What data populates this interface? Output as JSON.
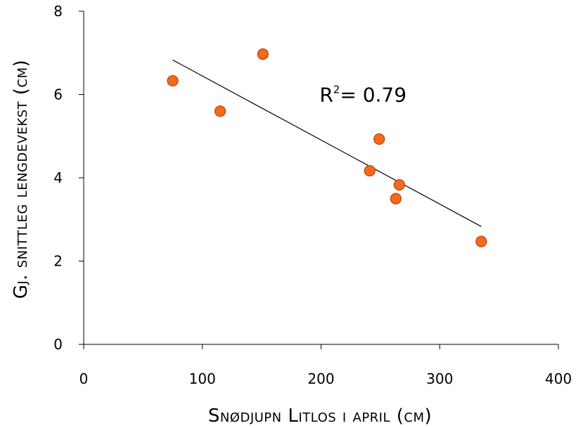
{
  "chart_data": {
    "type": "scatter",
    "xlabel": "Snødjupn Litlos i april (cm)",
    "ylabel": "Gj. snittleg lengdevekst (cm)",
    "xlim": [
      0,
      400
    ],
    "ylim": [
      0,
      8
    ],
    "xticks": [
      0,
      100,
      200,
      300,
      400
    ],
    "yticks": [
      0,
      2,
      4,
      6,
      8
    ],
    "xtick_labels": [
      "0",
      "100",
      "200",
      "300",
      "400"
    ],
    "ytick_labels": [
      "0",
      "2",
      "4",
      "6",
      "8"
    ],
    "grid": false,
    "series": [
      {
        "points": [
          {
            "x": 75,
            "y": 6.33
          },
          {
            "x": 115,
            "y": 5.6
          },
          {
            "x": 151,
            "y": 6.97
          },
          {
            "x": 241,
            "y": 4.17
          },
          {
            "x": 249,
            "y": 4.93
          },
          {
            "x": 263,
            "y": 3.5
          },
          {
            "x": 266,
            "y": 3.83
          },
          {
            "x": 335,
            "y": 2.47
          }
        ],
        "marker_color": "#f26b1d",
        "marker_edge": "#c23b0a"
      }
    ],
    "trendline": {
      "x1": 75,
      "y1": 6.83,
      "x2": 335,
      "y2": 2.83,
      "color": "#000000"
    },
    "annotation": {
      "base": "R",
      "sup": "2",
      "rest": "= 0.79",
      "anchor": {
        "x": 175,
        "y": 6.0
      }
    }
  }
}
